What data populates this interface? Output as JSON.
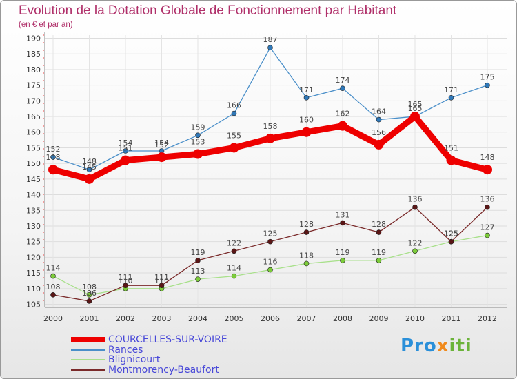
{
  "title": "Evolution de la Dotation Globale de Fonctionnement par Habitant",
  "subtitle": "(en € et par an)",
  "logo": {
    "text": "Proxiti",
    "part1": "Pro",
    "part2": "x",
    "part3": "iti"
  },
  "chart_data": {
    "type": "line",
    "title": "Evolution de la Dotation Globale de Fonctionnement par Habitant",
    "ylabel": "(en € et par an)",
    "xlabel": "",
    "x": [
      "2000",
      "2001",
      "2002",
      "2003",
      "2004",
      "2005",
      "2006",
      "2007",
      "2008",
      "2009",
      "2010",
      "2011",
      "2012"
    ],
    "ylim": [
      104,
      191
    ],
    "yticks": [
      105,
      110,
      115,
      120,
      125,
      130,
      135,
      140,
      145,
      150,
      155,
      160,
      165,
      170,
      175,
      180,
      185,
      190
    ],
    "grid": true,
    "legend_position": "bottom-left",
    "series": [
      {
        "name": "Rances",
        "color": "#4a8fc9",
        "marker": "#2f78b8",
        "values": [
          152,
          148,
          154,
          154,
          159,
          166,
          187,
          171,
          174,
          164,
          165,
          171,
          175
        ]
      },
      {
        "name": "Blignicourt",
        "color": "#a8e08a",
        "marker": "#7ccc3a",
        "values": [
          114,
          108,
          110,
          110,
          113,
          114,
          116,
          118,
          119,
          119,
          122,
          125,
          127
        ]
      },
      {
        "name": "Montmorency-Beaufort",
        "color": "#7a2a2a",
        "marker": "#5a1616",
        "values": [
          108,
          106,
          111,
          111,
          119,
          122,
          125,
          128,
          131,
          128,
          136,
          125,
          136
        ]
      },
      {
        "name": "COURCELLES-SUR-VOIRE",
        "color": "#ee0000",
        "marker": "#ee0000",
        "values": [
          148,
          145,
          151,
          152,
          153,
          155,
          158,
          160,
          162,
          156,
          165,
          151,
          148
        ]
      }
    ],
    "legend": [
      "COURCELLES-SUR-VOIRE",
      "Rances",
      "Blignicourt",
      "Montmorency-Beaufort"
    ]
  }
}
